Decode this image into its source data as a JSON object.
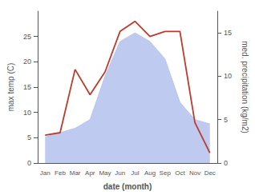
{
  "chart_data": {
    "type": "line",
    "categories": [
      "Jan",
      "Feb",
      "Mar",
      "Apr",
      "May",
      "Jun",
      "Jul",
      "Aug",
      "Sep",
      "Oct",
      "Nov",
      "Dec"
    ],
    "series": [
      {
        "type": "area",
        "axis": "y2",
        "color": "#b8c4f0",
        "values": [
          3.0,
          3.5,
          4.0,
          5.0,
          10.0,
          14.0,
          15.0,
          14.0,
          12.0,
          7.0,
          5.0,
          4.5
        ]
      },
      {
        "type": "line",
        "color": "#c0392b",
        "values": [
          5.5,
          6.0,
          18.5,
          13.5,
          18.0,
          26.0,
          28.0,
          25.0,
          26.0,
          26.0,
          8.0,
          2.0
        ]
      }
    ],
    "xlabel": "date (month)",
    "ylabel": "max temp (C)",
    "y2label": "med. precipitation (kg/m2)",
    "ylim": [
      0,
      30
    ],
    "yticks": [
      0,
      5,
      10,
      15,
      20,
      25
    ],
    "y2lim": [
      0,
      17.5
    ],
    "y2ticks": [
      0,
      5,
      10,
      15
    ],
    "grid": false
  }
}
